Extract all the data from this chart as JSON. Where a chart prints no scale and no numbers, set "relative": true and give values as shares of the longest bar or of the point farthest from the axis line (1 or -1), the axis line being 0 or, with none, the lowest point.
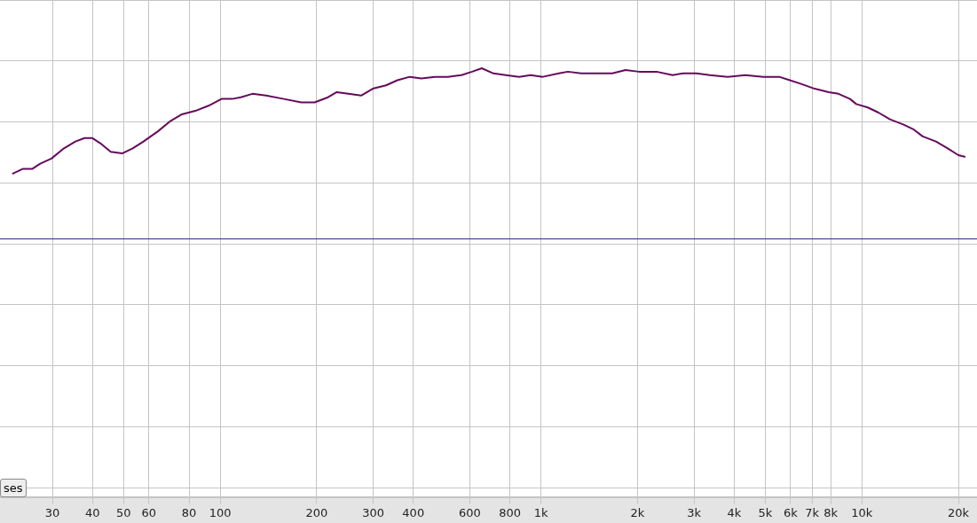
{
  "chart_data": {
    "type": "line",
    "relative": true,
    "grid": true,
    "legend": false,
    "marker": "none",
    "line_style": "solid",
    "log": "x",
    "xlim": [
      20.6,
      22860
    ],
    "xticks": [
      30,
      40,
      50,
      60,
      80,
      {
        "value": 100,
        "label": "100"
      },
      200,
      300,
      400,
      600,
      800,
      {
        "value": 1000,
        "label": "1k"
      },
      {
        "value": 2000,
        "label": "2k"
      },
      {
        "value": 3000,
        "label": "3k"
      },
      {
        "value": 4000,
        "label": "4k"
      },
      {
        "value": 5000,
        "label": "5k"
      },
      {
        "value": 6000,
        "label": "6k"
      },
      {
        "value": 7000,
        "label": "7k"
      },
      {
        "value": 8000,
        "label": "8k"
      },
      {
        "value": 10000,
        "label": "10k"
      },
      {
        "value": 20000,
        "label": "20k"
      }
    ],
    "ref_lines": [
      {
        "axis": "y",
        "value": 0,
        "color": "#2e2e7a"
      }
    ],
    "annotations": [
      "ses"
    ],
    "series": [
      {
        "color": "#660a5c",
        "x": [
          22.5,
          24.3,
          26.0,
          27.5,
          29.8,
          32.6,
          35.4,
          37.8,
          40.0,
          42.3,
          45.6,
          49.5,
          53.4,
          57.7,
          64,
          70,
          76,
          83.7,
          92,
          101,
          109,
          116,
          126,
          139,
          158,
          179,
          197,
          217,
          231,
          251,
          275,
          299,
          329,
          357,
          390,
          424,
          467,
          513,
          565,
          610,
          654,
          711,
          777,
          855,
          928,
          1014,
          1137,
          1213,
          1335,
          1487,
          1668,
          1835,
          2020,
          2292,
          2572,
          2775,
          3053,
          3361,
          3818,
          4337,
          4926,
          5527,
          5965,
          6437,
          7128,
          7893,
          8462,
          9190,
          9610,
          10440,
          11270,
          12240,
          13460,
          14530,
          15480,
          17030,
          18520,
          19990,
          21020
        ],
        "values": [
          0.38,
          0.41,
          0.41,
          0.44,
          0.47,
          0.53,
          0.57,
          0.59,
          0.59,
          0.56,
          0.51,
          0.5,
          0.53,
          0.57,
          0.63,
          0.69,
          0.73,
          0.75,
          0.78,
          0.82,
          0.82,
          0.83,
          0.85,
          0.84,
          0.82,
          0.8,
          0.8,
          0.83,
          0.86,
          0.85,
          0.84,
          0.88,
          0.9,
          0.93,
          0.95,
          0.94,
          0.95,
          0.95,
          0.96,
          0.98,
          1.0,
          0.97,
          0.96,
          0.95,
          0.96,
          0.95,
          0.97,
          0.98,
          0.97,
          0.97,
          0.97,
          0.99,
          0.98,
          0.98,
          0.96,
          0.97,
          0.97,
          0.96,
          0.95,
          0.96,
          0.95,
          0.95,
          0.93,
          0.91,
          0.88,
          0.86,
          0.85,
          0.82,
          0.79,
          0.77,
          0.74,
          0.7,
          0.67,
          0.64,
          0.6,
          0.57,
          0.53,
          0.49,
          0.48
        ]
      }
    ]
  }
}
